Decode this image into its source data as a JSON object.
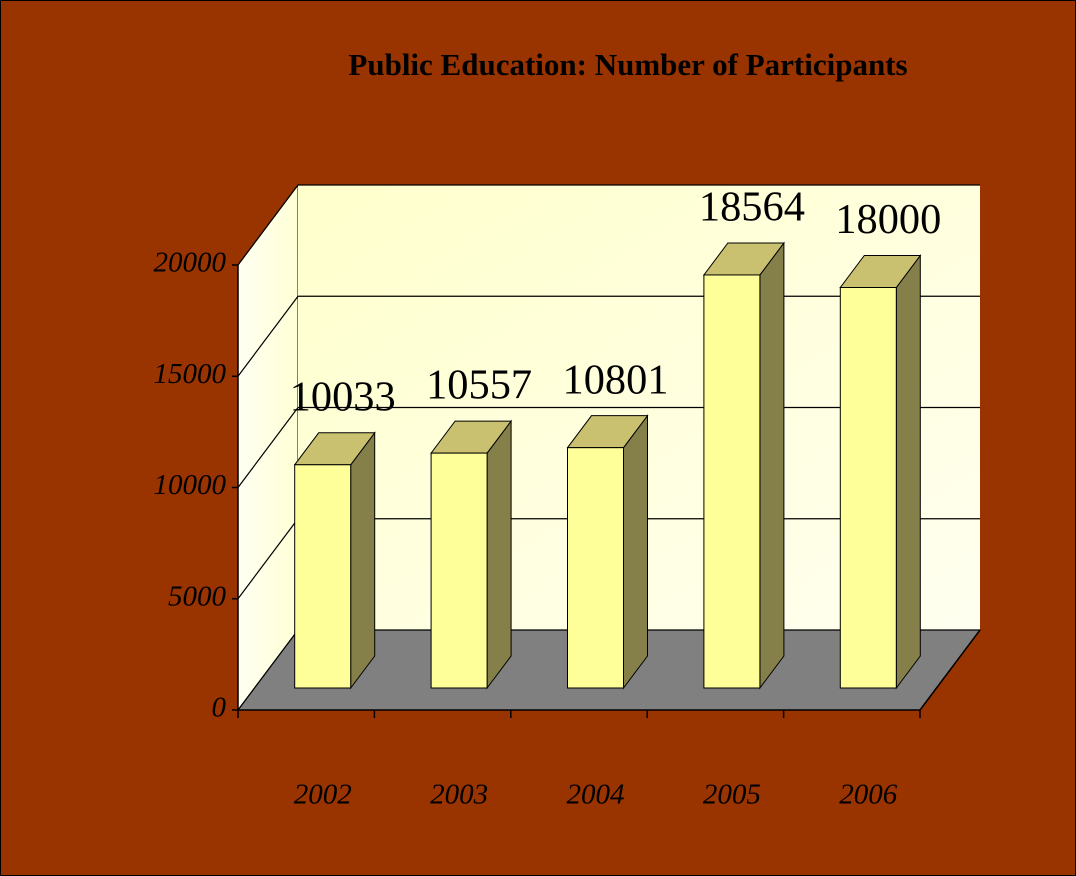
{
  "chart_data": {
    "type": "bar3d",
    "title": "Public Education: Number of Participants",
    "categories": [
      "2002",
      "2003",
      "2004",
      "2005",
      "2006"
    ],
    "values": [
      10033,
      10557,
      10801,
      18564,
      18000
    ],
    "color": "#ffff99",
    "ylim": [
      0,
      20000
    ],
    "yticks": [
      0,
      5000,
      10000,
      15000,
      20000
    ],
    "grid": true
  }
}
